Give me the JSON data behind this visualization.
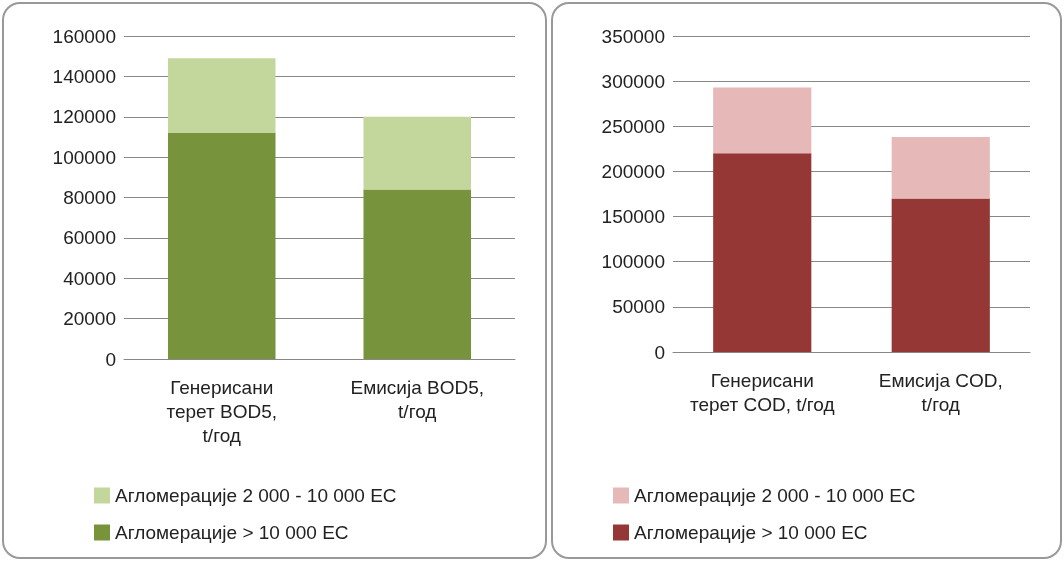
{
  "chart_data": [
    {
      "type": "bar",
      "stacked": true,
      "categories": [
        "Генерисани терет BOD5, t/год",
        "Емисија BOD5, t/год"
      ],
      "series": [
        {
          "name": "Агломерације > 10 000 ЕС",
          "color": "#77933c",
          "values": [
            112000,
            84000
          ]
        },
        {
          "name": "Агломерације 2 000 - 10 000 ЕС",
          "color": "#c3d69b",
          "values": [
            37000,
            36000
          ]
        }
      ],
      "ylim": [
        0,
        160000
      ],
      "yticks": [
        0,
        20000,
        40000,
        60000,
        80000,
        100000,
        120000,
        140000,
        160000
      ],
      "grid": "y",
      "legend": "bottom"
    },
    {
      "type": "bar",
      "stacked": true,
      "categories": [
        "Генерисани терет COD, t/год",
        "Емисија COD, t/год"
      ],
      "series": [
        {
          "name": "Агломерације > 10 000 ЕС",
          "color": "#953735",
          "values": [
            220000,
            170000
          ]
        },
        {
          "name": "Агломерације 2 000 - 10 000 ЕС",
          "color": "#e6b9b8",
          "values": [
            73000,
            68000
          ]
        }
      ],
      "ylim": [
        0,
        350000
      ],
      "yticks": [
        0,
        50000,
        100000,
        150000,
        200000,
        250000,
        300000,
        350000
      ],
      "grid": "y",
      "legend": "bottom"
    }
  ]
}
